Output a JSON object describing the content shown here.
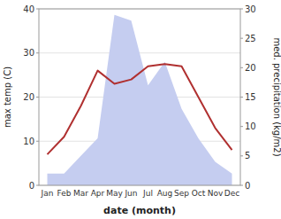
{
  "chart_data": {
    "type": "line",
    "categories": [
      "Jan",
      "Feb",
      "Mar",
      "Apr",
      "May",
      "Jun",
      "Jul",
      "Aug",
      "Sep",
      "Oct",
      "Nov",
      "Dec"
    ],
    "xlabel": "date (month)",
    "ylabel": "max temp (C)",
    "y2label": "med. precipitation (kg/m2)",
    "ylim": [
      0,
      40
    ],
    "yticks": [
      0,
      10,
      20,
      30,
      40
    ],
    "y2lim": [
      0,
      30
    ],
    "y2ticks": [
      0,
      5,
      10,
      15,
      20,
      25,
      30
    ],
    "grid": true,
    "series": [
      {
        "type": "area",
        "axis": "y2",
        "color": "#c5cdf0",
        "values": [
          2.0,
          2.0,
          5.0,
          8.0,
          29.0,
          28.0,
          17.0,
          21.0,
          13.0,
          8.0,
          4.0,
          2.0
        ]
      },
      {
        "type": "line",
        "color": "#b03030",
        "values": [
          7.0,
          11.0,
          18.0,
          26.0,
          23.0,
          24.0,
          27.0,
          27.5,
          27.0,
          20.0,
          13.0,
          8.0
        ]
      }
    ]
  }
}
